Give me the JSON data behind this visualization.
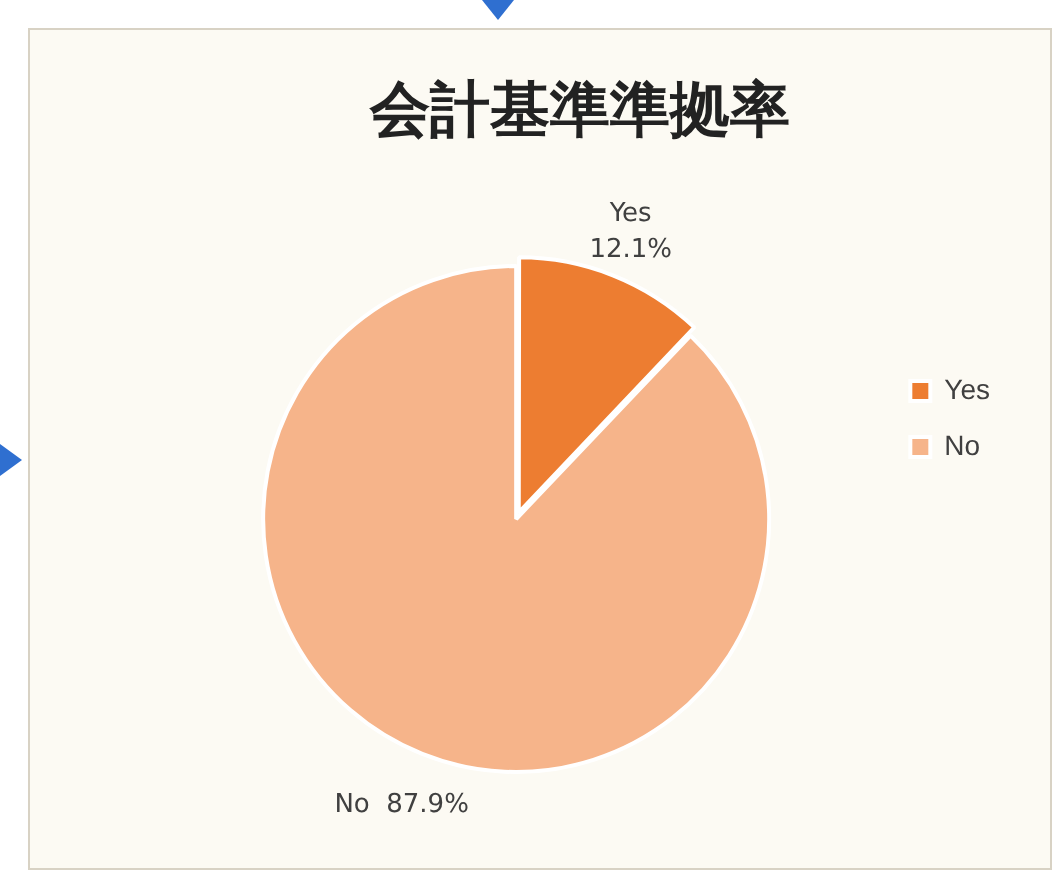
{
  "chart_data": {
    "type": "pie",
    "title": "会計基準準拠率",
    "categories": [
      "Yes",
      "No"
    ],
    "values": [
      12.1,
      87.9
    ],
    "colors": [
      "#ed7d31",
      "#f6b48a"
    ],
    "value_labels": [
      "12.1%",
      "87.9%"
    ],
    "legend": "right"
  }
}
